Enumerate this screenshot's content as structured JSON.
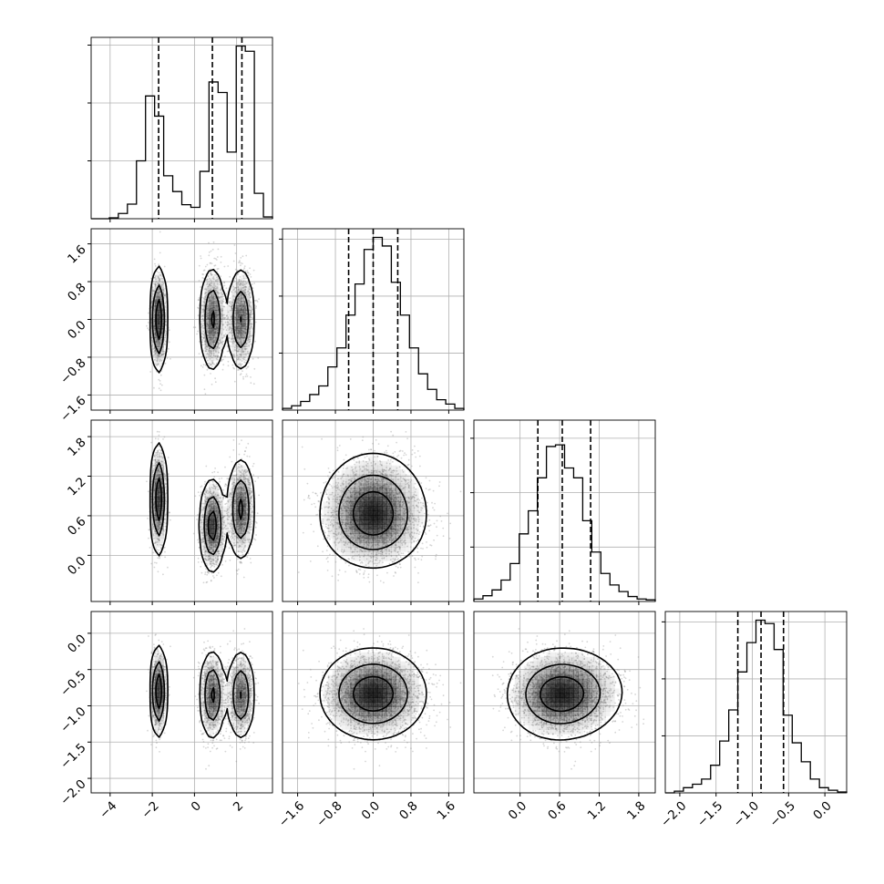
{
  "chart_data": {
    "type": "corner",
    "variables": [
      {
        "range": [
          -4.9,
          3.7
        ],
        "ticks": [
          -4,
          -2,
          0,
          2
        ],
        "tick_labels": [
          "−4",
          "−2",
          "0",
          "2"
        ],
        "quantiles": [
          -1.7,
          0.85,
          2.25
        ],
        "hist_edges": [
          -4.9,
          -4.47,
          -4.04,
          -3.61,
          -3.18,
          -2.75,
          -2.32,
          -1.89,
          -1.46,
          -1.03,
          -0.6,
          -0.17,
          0.26,
          0.69,
          1.12,
          1.55,
          1.98,
          2.41,
          2.84,
          3.27,
          3.7
        ],
        "hist_counts": [
          0,
          0,
          0.005,
          0.03,
          0.083,
          0.33,
          0.7,
          0.585,
          0.245,
          0.155,
          0.08,
          0.065,
          0.27,
          0.78,
          0.72,
          0.38,
          0.985,
          0.955,
          0.145,
          0.01
        ]
      },
      {
        "range": [
          -1.92,
          1.92
        ],
        "ticks": [
          -1.6,
          -0.8,
          0.0,
          0.8,
          1.6
        ],
        "tick_labels": [
          "−1.6",
          "−0.8",
          "0.0",
          "0.8",
          "1.6"
        ],
        "quantiles": [
          -0.52,
          0.0,
          0.52
        ],
        "hist_edges": [
          -1.92,
          -1.728,
          -1.536,
          -1.344,
          -1.152,
          -0.96,
          -0.768,
          -0.576,
          -0.384,
          -0.192,
          0.0,
          0.192,
          0.384,
          0.576,
          0.768,
          0.96,
          1.152,
          1.344,
          1.536,
          1.728,
          1.92
        ],
        "hist_counts": [
          0.01,
          0.025,
          0.05,
          0.09,
          0.14,
          0.25,
          0.36,
          0.55,
          0.73,
          0.93,
          1.0,
          0.95,
          0.74,
          0.55,
          0.36,
          0.21,
          0.12,
          0.06,
          0.035,
          0.01
        ]
      },
      {
        "range": [
          -0.7,
          2.05
        ],
        "ticks": [
          0.0,
          0.6,
          1.2,
          1.8
        ],
        "tick_labels": [
          "0.0",
          "0.6",
          "1.2",
          "1.8"
        ],
        "quantiles": [
          0.27,
          0.64,
          1.07
        ],
        "hist_edges": [
          -0.7,
          -0.5625,
          -0.425,
          -0.2875,
          -0.15,
          -0.0125,
          0.125,
          0.2625,
          0.4,
          0.5375,
          0.675,
          0.8125,
          0.95,
          1.0875,
          1.225,
          1.3625,
          1.5,
          1.6375,
          1.775,
          1.9125,
          2.05
        ],
        "hist_counts": [
          0.015,
          0.035,
          0.07,
          0.13,
          0.23,
          0.41,
          0.55,
          0.75,
          0.94,
          0.95,
          0.81,
          0.75,
          0.49,
          0.3,
          0.17,
          0.1,
          0.06,
          0.03,
          0.015,
          0.01
        ],
        "ylim_max": 1.1
      },
      {
        "range": [
          -2.2,
          0.3
        ],
        "ticks": [
          -2.0,
          -1.5,
          -1.0,
          -0.5,
          0.0
        ],
        "tick_labels": [
          "−2.0",
          "−1.5",
          "−1.0",
          "−0.5",
          "0.0"
        ],
        "quantiles": [
          -1.2,
          -0.88,
          -0.57
        ],
        "hist_edges": [
          -2.2,
          -2.075,
          -1.95,
          -1.825,
          -1.7,
          -1.575,
          -1.45,
          -1.325,
          -1.2,
          -1.075,
          -0.95,
          -0.825,
          -0.7,
          -0.575,
          -0.45,
          -0.325,
          -0.2,
          -0.075,
          0.05,
          0.175,
          0.3
        ],
        "hist_counts": [
          0.0,
          0.01,
          0.03,
          0.05,
          0.08,
          0.16,
          0.3,
          0.48,
          0.7,
          0.87,
          1.0,
          0.98,
          0.83,
          0.45,
          0.29,
          0.18,
          0.08,
          0.03,
          0.015,
          0.005
        ]
      }
    ],
    "histogram_y_ticks": [
      0.0,
      0.33,
      0.66,
      0.99
    ],
    "density_components": [
      {
        "weight": 0.3,
        "mean": [
          -1.7,
          0.0,
          0.85,
          -0.8
        ],
        "sd": [
          0.18,
          0.5,
          0.38,
          0.28
        ]
      },
      {
        "weight": 0.35,
        "mean": [
          0.85,
          0.0,
          0.45,
          -0.85
        ],
        "sd": [
          0.28,
          0.5,
          0.32,
          0.28
        ]
      },
      {
        "weight": 0.35,
        "mean": [
          2.2,
          0.0,
          0.7,
          -0.85
        ],
        "sd": [
          0.3,
          0.5,
          0.35,
          0.28
        ]
      }
    ],
    "contour_levels": [
      0.92,
      0.65,
      0.3
    ],
    "grid": true,
    "quantile_line_style": "dashed",
    "colors": {
      "line": "#000000",
      "grid": "#b0b0b0",
      "points": "#8a8a8a",
      "density": "#000000"
    }
  }
}
